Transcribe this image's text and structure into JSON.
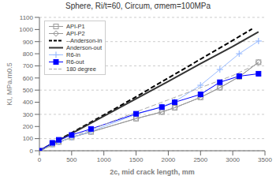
{
  "chart_data": {
    "type": "line",
    "title": "Sphere, Ri/t=60, Circum, σmem=100MPa",
    "xlabel": "2c, mid crack length, mm",
    "ylabel": "KI, MPa.m0.5",
    "xlim": [
      0,
      3500
    ],
    "ylim": [
      0,
      1100
    ],
    "xticks": [
      0,
      500,
      1000,
      1500,
      2000,
      2500,
      3000,
      3500
    ],
    "yticks": [
      0,
      100,
      200,
      300,
      400,
      500,
      600,
      700,
      800,
      900,
      1000,
      1100
    ],
    "grid": "y",
    "legend": "upper left",
    "series": [
      {
        "name": "API-P1",
        "color": "#999999",
        "marker": "open_square",
        "line_style": "solid",
        "x": [
          0,
          200,
          300,
          500,
          800,
          1500,
          1900,
          2100,
          2500,
          2800,
          3100,
          3400
        ],
        "values": [
          0,
          52,
          72,
          110,
          155,
          265,
          320,
          355,
          440,
          520,
          610,
          730
        ]
      },
      {
        "name": "API-P2",
        "color": "#999999",
        "marker": "open_diamond",
        "line_style": "solid",
        "x": [
          0,
          200,
          300,
          500,
          800,
          1500,
          1900,
          2100,
          2500,
          2800,
          3100,
          3400
        ],
        "values": [
          0,
          52,
          72,
          110,
          155,
          265,
          320,
          355,
          440,
          520,
          610,
          730
        ]
      },
      {
        "name": "--Anderson-in",
        "color": "#000000",
        "marker": "none",
        "line_style": "dashed",
        "x": [
          0,
          500,
          1000,
          1500,
          2000,
          2500,
          3000,
          3300
        ],
        "values": [
          0,
          148,
          295,
          445,
          600,
          755,
          910,
          1005
        ]
      },
      {
        "name": "Anderson-out",
        "color": "#333333",
        "marker": "none",
        "line_style": "solid",
        "x": [
          0,
          500,
          1000,
          1500,
          2000,
          2500,
          3000,
          3400
        ],
        "values": [
          0,
          142,
          285,
          428,
          572,
          718,
          860,
          980
        ]
      },
      {
        "name": "R6-in",
        "color": "#99bbff",
        "marker": "plus",
        "line_style": "solid",
        "x": [
          0,
          200,
          300,
          500,
          800,
          1500,
          1900,
          2100,
          2500,
          2800,
          3100,
          3400
        ],
        "values": [
          0,
          52,
          72,
          110,
          160,
          300,
          365,
          405,
          540,
          670,
          800,
          905
        ]
      },
      {
        "name": "R6-out",
        "color": "#0000ff",
        "marker": "square",
        "line_style": "solid",
        "x": [
          0,
          200,
          300,
          500,
          800,
          1500,
          1900,
          2100,
          2500,
          2800,
          3100,
          3400
        ],
        "values": [
          0,
          65,
          90,
          130,
          180,
          305,
          360,
          400,
          465,
          565,
          615,
          635
        ]
      },
      {
        "name": "180 degree",
        "color": "#aaaaaa",
        "marker": "none",
        "line_style": "dashed",
        "x": [
          0,
          500,
          1000,
          1500,
          2000,
          2500,
          3000,
          3400
        ],
        "values": [
          0,
          110,
          215,
          320,
          420,
          520,
          620,
          720
        ]
      }
    ]
  }
}
